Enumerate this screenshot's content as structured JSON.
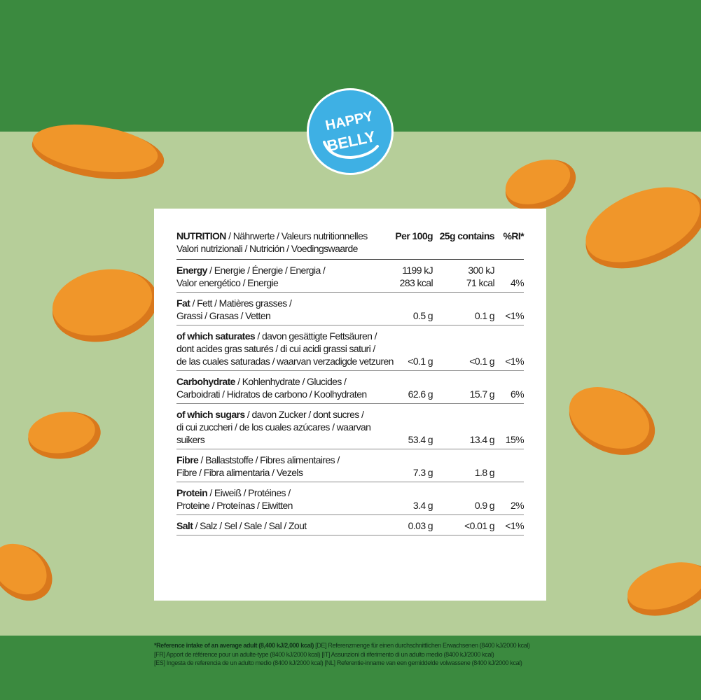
{
  "brand": {
    "logo_line1": "HAPPY",
    "logo_line2": "BELLY",
    "color": "#3eb0e4"
  },
  "colors": {
    "band_green": "#3b8a3f",
    "background_green": "#b6ce99",
    "apricot": "#f0962a"
  },
  "table": {
    "header": {
      "label_bold": "NUTRITION",
      "label_rest1": " / Nährwerte / Valeurs nutritionnelles",
      "label_line2": "Valori nutrizionali / Nutrición / Voedingswaarde",
      "col_per100": "Per 100g",
      "col_per25": "25g contains",
      "col_ri": "%RI*"
    },
    "rows": [
      {
        "bold": "Energy",
        "rest1": " / Energie / Énergie / Energia /",
        "line2": "Valor energético / Energie",
        "per100": "1199 kJ",
        "per100_b": "283 kcal",
        "per25": "300 kJ",
        "per25_b": "71 kcal",
        "ri": "4%"
      },
      {
        "bold": "Fat",
        "rest1": " / Fett / Matières grasses /",
        "line2": "Grassi / Grasas / Vetten",
        "per100": "0.5 g",
        "per25": "0.1 g",
        "ri": "<1%"
      },
      {
        "bold": "of which saturates",
        "rest1": " / davon gesättigte Fettsäuren /",
        "line2": "dont acides gras saturés / di cui acidi grassi saturi /",
        "line3": "de las cuales saturadas / waarvan verzadigde vetzuren",
        "per100": "<0.1 g",
        "per25": "<0.1 g",
        "ri": "<1%"
      },
      {
        "bold": "Carbohydrate",
        "rest1": " / Kohlenhydrate / Glucides /",
        "line2": "Carboidrati / Hidratos de carbono / Koolhydraten",
        "per100": "62.6 g",
        "per25": "15.7 g",
        "ri": "6%"
      },
      {
        "bold": "of which sugars",
        "rest1": " / davon Zucker / dont sucres /",
        "line2": "di cui zuccheri / de los cuales azúcares / waarvan suikers",
        "per100": "53.4 g",
        "per25": "13.4 g",
        "ri": "15%"
      },
      {
        "bold": "Fibre",
        "rest1": " / Ballaststoffe / Fibres alimentaires /",
        "line2": "Fibre / Fibra alimentaria  / Vezels",
        "per100": "7.3 g",
        "per25": "1.8 g",
        "ri": ""
      },
      {
        "bold": "Protein",
        "rest1": " / Eiweiß / Protéines /",
        "line2": "Proteine / Proteínas / Eiwitten",
        "per100": "3.4 g",
        "per25": "0.9 g",
        "ri": "2%"
      },
      {
        "bold": "Salt",
        "rest1": " / Salz / Sel / Sale / Sal / Zout",
        "per100": "0.03 g",
        "per25": "<0.01 g",
        "ri": "<1%"
      }
    ]
  },
  "footnote": {
    "line1_bold": "*Reference intake of an average adult (8,400 kJ/2,000 kcal)",
    "line1_rest": " [DE] Referenzmenge für einen durchschnittlichen Erwachsenen (8400 kJ/2000 kcal)",
    "line2": "[FR] Apport de référence pour un adulte-type (8400 kJ/2000 kcal) [IT] Assunzioni di riferimento di un adulto medio (8400 kJ/2000 kcal)",
    "line3": "[ES] Ingesta de referencia de un adulto medio (8400 kJ/2000 kcal) [NL] Referentie-inname van een gemiddelde volwassene (8400 kJ/2000 kcal)"
  }
}
